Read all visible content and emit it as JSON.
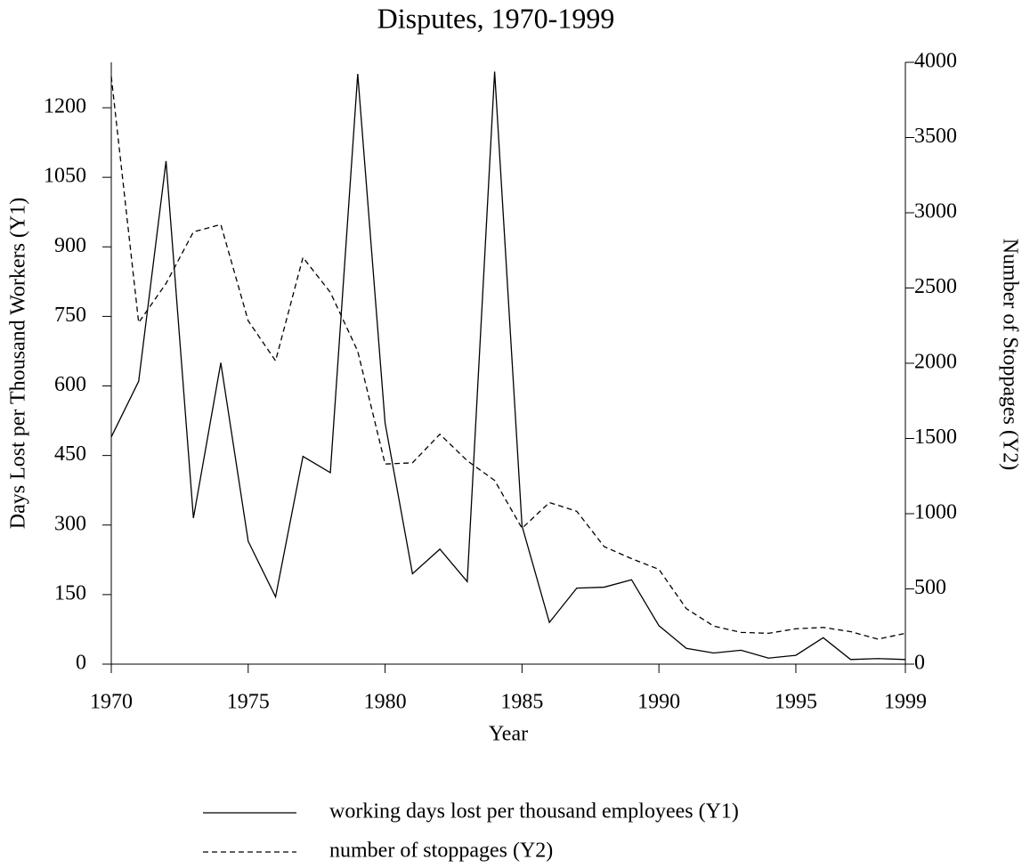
{
  "chart_data": {
    "type": "line",
    "title": "Disputes, 1970-1999",
    "x_label": "Year",
    "y_label": "Days Lost per Thousand Workers (Y1)",
    "y2_label": "Number of Stoppages (Y2)",
    "x": [
      1970,
      1971,
      1972,
      1973,
      1974,
      1975,
      1976,
      1977,
      1978,
      1979,
      1980,
      1981,
      1982,
      1983,
      1984,
      1985,
      1986,
      1987,
      1988,
      1989,
      1990,
      1991,
      1992,
      1993,
      1994,
      1995,
      1996,
      1997,
      1998,
      1999
    ],
    "xlim": [
      1970,
      1999
    ],
    "xticks": [
      1970,
      1975,
      1980,
      1985,
      1990,
      1995,
      1999
    ],
    "ylim": [
      0,
      1298
    ],
    "yticks": [
      0,
      150,
      300,
      450,
      600,
      750,
      900,
      1050,
      1200
    ],
    "y2lim": [
      0,
      4000
    ],
    "y2ticks": [
      0,
      500,
      1000,
      1500,
      2000,
      2500,
      3000,
      3500,
      4000
    ],
    "legend": "bottom",
    "series": [
      {
        "name": "working days lost per thousand employees (Y1)",
        "color": "#000000",
        "dash": "solid",
        "values": [
          490,
          610,
          1085,
          315,
          650,
          265,
          145,
          448,
          413,
          1273,
          520,
          195,
          248,
          178,
          1278,
          298,
          90,
          164,
          166,
          182,
          83,
          34,
          24,
          30,
          13,
          19,
          57,
          10,
          12,
          10
        ]
      },
      {
        "name": "number of stoppages (Y2)",
        "color": "#000000",
        "dash": "dashed",
        "axis": "y2",
        "values": [
          3906,
          2270,
          2530,
          2873,
          2922,
          2282,
          2016,
          2703,
          2471,
          2080,
          1330,
          1338,
          1528,
          1352,
          1221,
          903,
          1074,
          1016,
          781,
          701,
          630,
          369,
          253,
          211,
          205,
          235,
          244,
          216,
          166,
          205
        ]
      }
    ]
  }
}
